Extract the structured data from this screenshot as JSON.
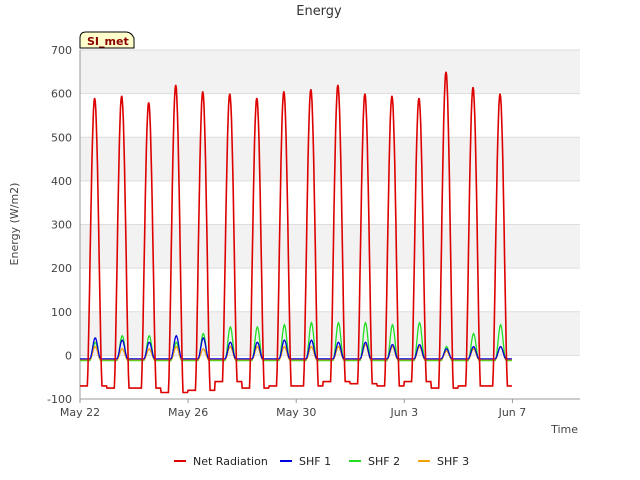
{
  "chart_data": {
    "type": "line",
    "title": "Energy",
    "badge": "SI_met",
    "xlabel": "Time",
    "ylabel": "Energy (W/m2)",
    "xlim": [
      "2020-05-22",
      "2020-06-09T12:00"
    ],
    "ylim": [
      -100,
      700
    ],
    "y_ticks": [
      -100,
      0,
      100,
      200,
      300,
      400,
      500,
      600,
      700
    ],
    "x_ticks": [
      "2020-05-22",
      "2020-05-26",
      "2020-05-30",
      "2020-06-03",
      "2020-06-07"
    ],
    "x_tick_labels": [
      "May 22",
      "May 26",
      "May 30",
      "Jun 3",
      "Jun 7"
    ],
    "grid": true,
    "legend_position": "bottom",
    "series": [
      {
        "name": "Net Radiation",
        "color": "#dd0000",
        "night": -70,
        "daily_peak": [
          590,
          595,
          580,
          620,
          605,
          600,
          590,
          605,
          610,
          620,
          600,
          595,
          590,
          650,
          615,
          600
        ],
        "daily_min": [
          -70,
          -75,
          -75,
          -85,
          -80,
          -60,
          -75,
          -70,
          -70,
          -60,
          -65,
          -70,
          -60,
          -75,
          -70,
          -70
        ]
      },
      {
        "name": "SHF 1",
        "color": "#0000dd",
        "night": -8,
        "daily_peak": [
          40,
          35,
          30,
          45,
          40,
          30,
          30,
          35,
          35,
          30,
          30,
          25,
          25,
          15,
          20,
          20
        ]
      },
      {
        "name": "SHF 2",
        "color": "#22dd22",
        "night": -12,
        "daily_peak": [
          30,
          45,
          45,
          30,
          50,
          65,
          65,
          70,
          75,
          75,
          75,
          70,
          75,
          20,
          50,
          70
        ]
      },
      {
        "name": "SHF 3",
        "color": "#f0a000",
        "night": -10,
        "daily_peak": [
          20,
          15,
          15,
          20,
          15,
          20,
          20,
          20,
          20,
          20,
          25,
          20,
          20,
          10,
          15,
          20
        ]
      }
    ]
  }
}
